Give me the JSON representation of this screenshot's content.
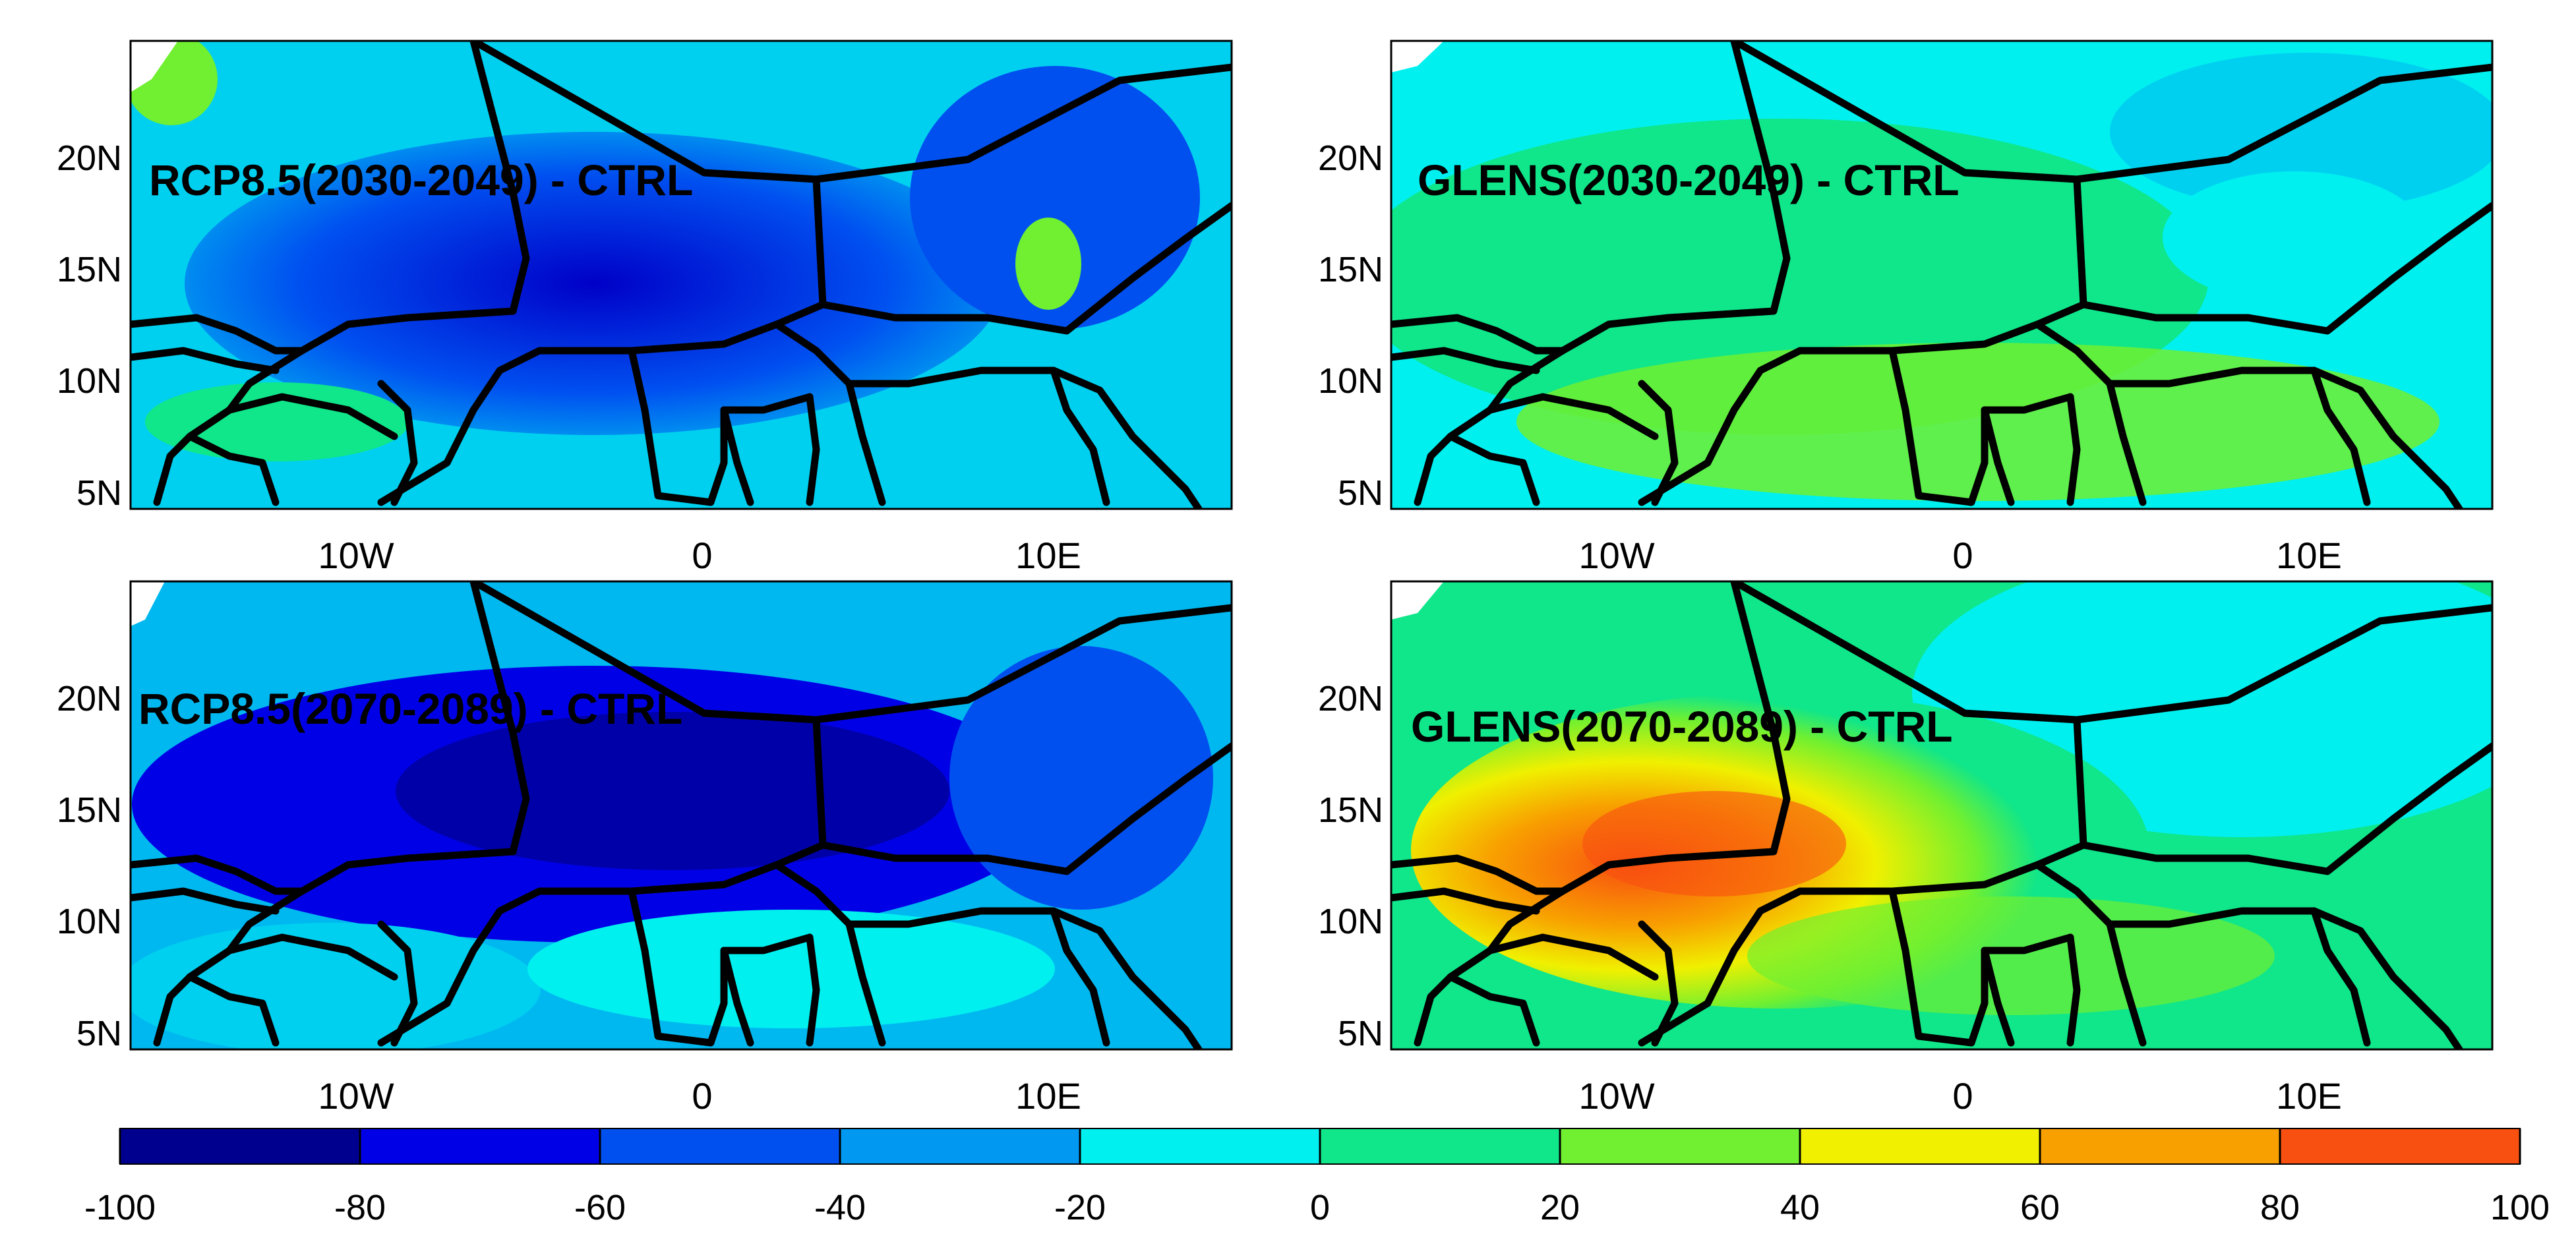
{
  "panels": [
    {
      "id": "p1",
      "title": "RCP8.5(2030-2049) - CTRL",
      "ramp": "negative"
    },
    {
      "id": "p2",
      "title": "GLENS(2030-2049) - CTRL",
      "ramp": "moderate"
    },
    {
      "id": "p3",
      "title": "RCP8.5(2070-2089) - CTRL",
      "ramp": "negative"
    },
    {
      "id": "p4",
      "title": "GLENS(2070-2089) - CTRL",
      "ramp": "positive"
    }
  ],
  "axes": {
    "lat_labels": [
      "20N",
      "15N",
      "10N",
      "5N"
    ],
    "lon_labels": [
      "10W",
      "0",
      "10E"
    ]
  },
  "colorbar": {
    "ticks": [
      "-100",
      "-80",
      "-60",
      "-40",
      "-20",
      "0",
      "20",
      "40",
      "60",
      "80",
      "100"
    ],
    "colors": [
      "#00008f",
      "#0000e6",
      "#0050f0",
      "#0098f0",
      "#00f0f0",
      "#10e68a",
      "#70f030",
      "#f0f000",
      "#f8a000",
      "#f85010"
    ]
  }
}
